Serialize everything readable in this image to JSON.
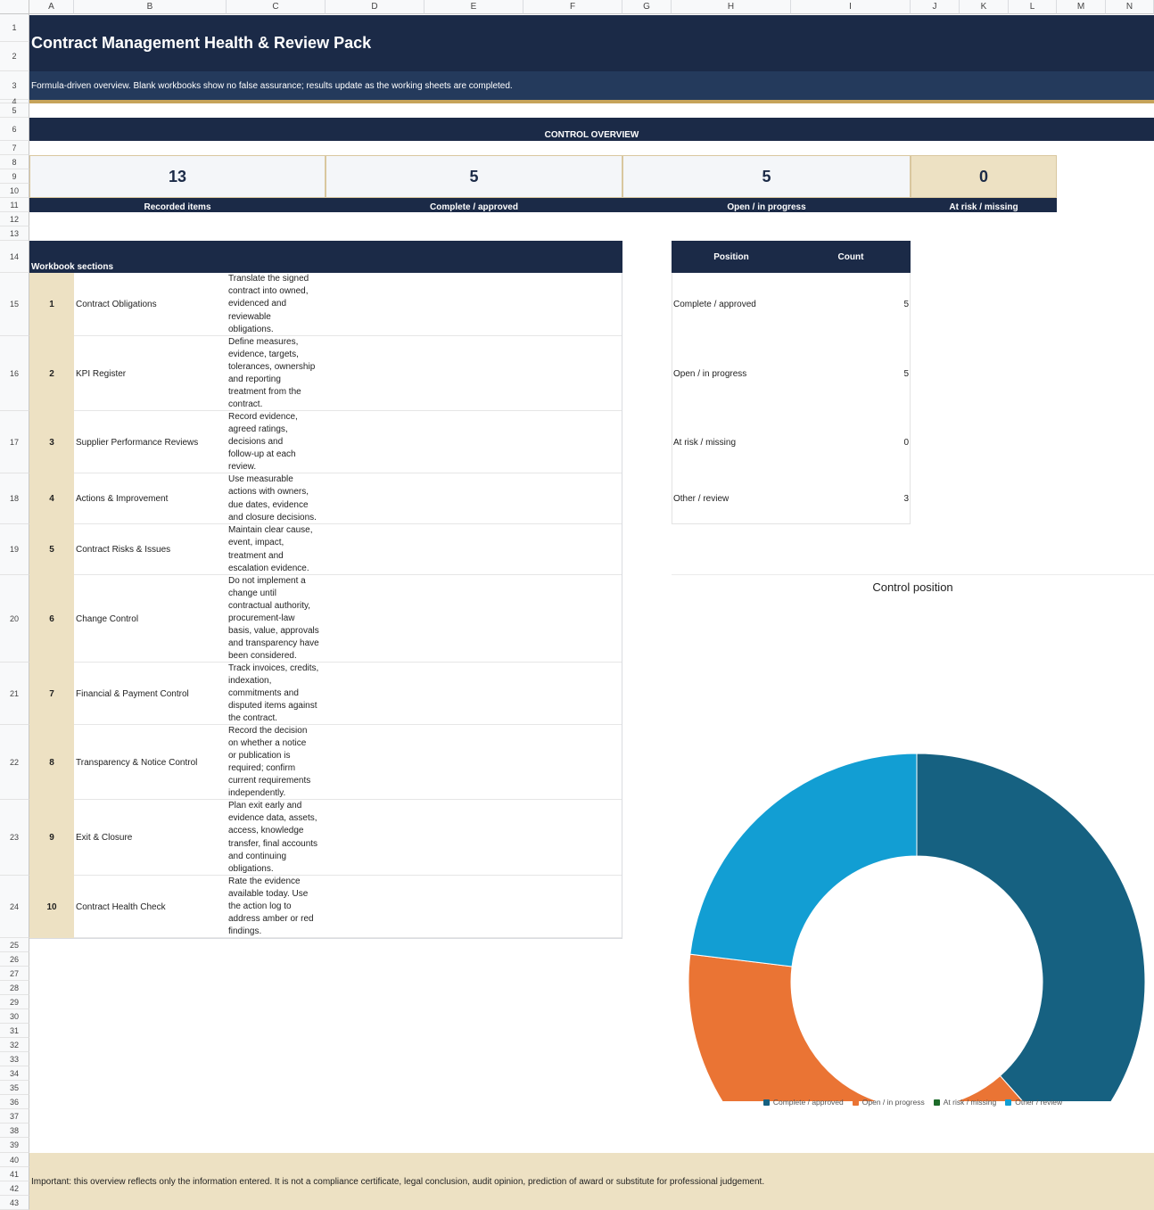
{
  "sheet": {
    "columns": [
      "A",
      "B",
      "C",
      "D",
      "E",
      "F",
      "G",
      "H",
      "I",
      "J",
      "K",
      "L",
      "M",
      "N"
    ],
    "rows": [
      "1",
      "2",
      "3",
      "4",
      "5",
      "6",
      "7",
      "8",
      "9",
      "10",
      "11",
      "12",
      "13",
      "14",
      "15",
      "16",
      "17",
      "18",
      "19",
      "20",
      "21",
      "22",
      "23",
      "24",
      "25",
      "26",
      "27",
      "28",
      "29",
      "30",
      "31",
      "32",
      "33",
      "34",
      "35",
      "36",
      "37",
      "38",
      "39",
      "40",
      "41",
      "42",
      "43"
    ]
  },
  "header": {
    "title": "Contract Management Health & Review Pack",
    "subtitle": "Formula-driven overview. Blank workbooks show no false assurance; results update as the working sheets are completed."
  },
  "overview": {
    "heading": "CONTROL OVERVIEW",
    "kpis": [
      {
        "value": "13",
        "label": "Recorded items"
      },
      {
        "value": "5",
        "label": "Complete / approved"
      },
      {
        "value": "5",
        "label": "Open / in progress"
      },
      {
        "value": "0",
        "label": "At risk / missing"
      }
    ]
  },
  "sections": {
    "heading": "Workbook sections",
    "items": [
      {
        "num": "1",
        "name": "Contract Obligations",
        "desc": "Translate the signed\ncontract into owned,\nevidenced and\nreviewable\nobligations."
      },
      {
        "num": "2",
        "name": "KPI Register",
        "desc": "Define measures,\nevidence, targets,\ntolerances, ownership\nand reporting\ntreatment from the\ncontract."
      },
      {
        "num": "3",
        "name": "Supplier Performance Reviews",
        "desc": "Record evidence,\nagreed ratings,\ndecisions and\nfollow-up at each\nreview."
      },
      {
        "num": "4",
        "name": "Actions & Improvement",
        "desc": "Use measurable\nactions with owners,\ndue dates, evidence\nand closure decisions."
      },
      {
        "num": "5",
        "name": "Contract Risks & Issues",
        "desc": "Maintain clear cause,\nevent, impact,\ntreatment and\nescalation evidence."
      },
      {
        "num": "6",
        "name": "Change Control",
        "desc": "Do not implement a\nchange until\ncontractual authority,\nprocurement-law\nbasis, value, approvals\nand transparency have\nbeen considered."
      },
      {
        "num": "7",
        "name": "Financial & Payment Control",
        "desc": "Track invoices, credits,\nindexation,\ncommitments and\ndisputed items against\nthe contract."
      },
      {
        "num": "8",
        "name": "Transparency & Notice Control",
        "desc": "Record the decision\non whether a notice\nor publication is\nrequired; confirm\ncurrent requirements\nindependently."
      },
      {
        "num": "9",
        "name": "Exit & Closure",
        "desc": "Plan exit early and\nevidence data, assets,\naccess, knowledge\ntransfer, final accounts\nand continuing\nobligations."
      },
      {
        "num": "10",
        "name": "Contract Health Check",
        "desc": "Rate the evidence\navailable today. Use\nthe action log to\naddress amber or red\nfindings."
      }
    ]
  },
  "position_table": {
    "col_position": "Position",
    "col_count": "Count",
    "rows": [
      {
        "position": "Complete / approved",
        "count": "5"
      },
      {
        "position": "Open / in progress",
        "count": "5"
      },
      {
        "position": "At risk / missing",
        "count": "0"
      },
      {
        "position": "Other / review",
        "count": "3"
      }
    ]
  },
  "chart_data": {
    "type": "pie",
    "variant": "donut",
    "title": "Control position",
    "categories": [
      "Complete / approved",
      "Open / in progress",
      "At risk / missing",
      "Other / review"
    ],
    "values": [
      5,
      5,
      0,
      3
    ],
    "colors": [
      "#166181",
      "#ea7434",
      "#1d6b2a",
      "#129ed3"
    ],
    "legend_position": "bottom"
  },
  "colors": {
    "navy": "#1b2a47",
    "navy_light": "#243a5c",
    "gold": "#c6a35a",
    "beige": "#ede1c3"
  },
  "footer": {
    "disclaimer": "Important: this overview reflects only the information entered. It is not a compliance certificate, legal conclusion, audit opinion, prediction of award or substitute for professional judgement."
  }
}
